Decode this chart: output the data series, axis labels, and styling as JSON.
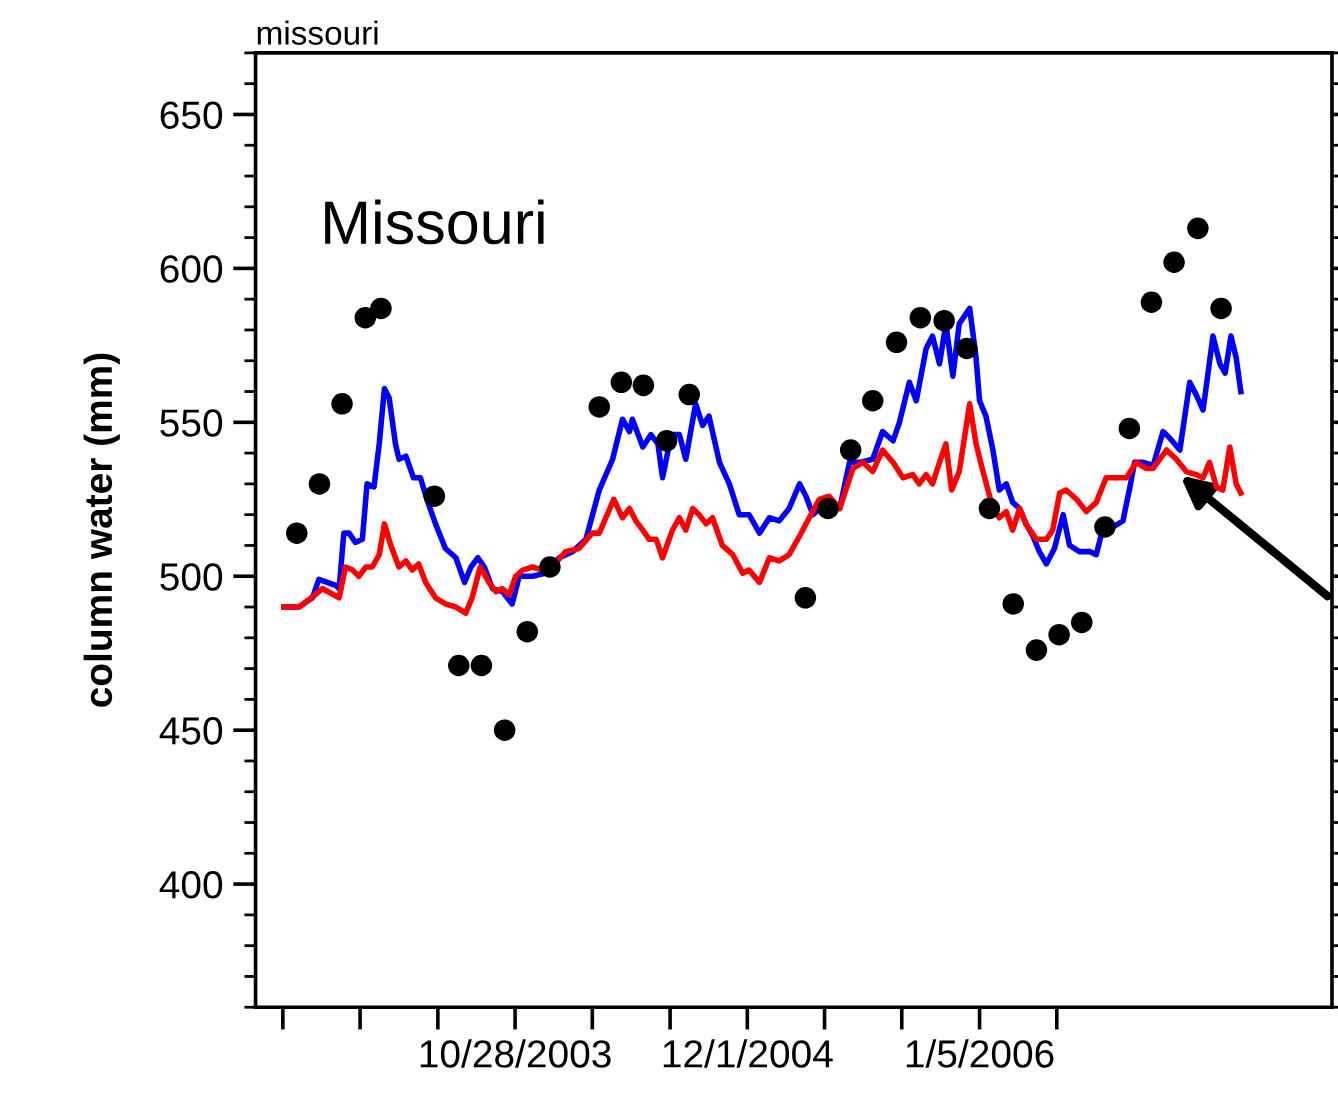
{
  "chart_data": {
    "type": "line",
    "title": "missouri",
    "ylabel": "column water (mm)",
    "annotations": [
      "Missouri"
    ],
    "xlim": [
      "2002-08-07",
      "2007-09-04"
    ],
    "xticks": [
      {
        "value": "2002-09-23",
        "label": null
      },
      {
        "value": "2003-02-03",
        "label": null
      },
      {
        "value": "2003-06-17",
        "label": null
      },
      {
        "value": "2003-10-28",
        "label": "10/28/2003"
      },
      {
        "value": "2004-03-09",
        "label": null
      },
      {
        "value": "2004-07-21",
        "label": null
      },
      {
        "value": "2004-12-01",
        "label": "12/1/2004"
      },
      {
        "value": "2005-04-13",
        "label": null
      },
      {
        "value": "2005-08-24",
        "label": null
      },
      {
        "value": "2006-01-05",
        "label": "1/5/2006"
      },
      {
        "value": "2006-05-18",
        "label": null
      }
    ],
    "ylim": [
      360,
      670
    ],
    "yticks": [
      {
        "value": 360,
        "label": null
      },
      {
        "value": 370,
        "label": null
      },
      {
        "value": 380,
        "label": null
      },
      {
        "value": 390,
        "label": null
      },
      400,
      {
        "value": 410,
        "label": null
      },
      {
        "value": 420,
        "label": null
      },
      {
        "value": 430,
        "label": null
      },
      {
        "value": 440,
        "label": null
      },
      450,
      {
        "value": 460,
        "label": null
      },
      {
        "value": 470,
        "label": null
      },
      {
        "value": 480,
        "label": null
      },
      {
        "value": 490,
        "label": null
      },
      500,
      {
        "value": 510,
        "label": null
      },
      {
        "value": 520,
        "label": null
      },
      {
        "value": 530,
        "label": null
      },
      {
        "value": 540,
        "label": null
      },
      550,
      {
        "value": 560,
        "label": null
      },
      {
        "value": 570,
        "label": null
      },
      {
        "value": 580,
        "label": null
      },
      {
        "value": 590,
        "label": null
      },
      600,
      {
        "value": 610,
        "label": null
      },
      {
        "value": 620,
        "label": null
      },
      {
        "value": 630,
        "label": null
      },
      {
        "value": 640,
        "label": null
      },
      650,
      {
        "value": 660,
        "label": null
      },
      {
        "value": 670,
        "label": null
      }
    ],
    "grid": false,
    "series": [
      {
        "color": "#0000ff",
        "x": [
          "2002-09-25",
          "2002-10-21",
          "2002-11-13",
          "2002-11-24",
          "2002-12-23",
          "2002-12-29",
          "2003-01-06",
          "2003-01-15",
          "2003-01-26",
          "2003-02-07",
          "2003-02-15",
          "2003-02-27",
          "2003-03-08",
          "2003-03-17",
          "2003-03-25",
          "2003-04-05",
          "2003-04-11",
          "2003-04-23",
          "2003-05-06",
          "2003-05-18",
          "2003-05-29",
          "2003-06-13",
          "2003-06-30",
          "2003-07-18",
          "2003-08-02",
          "2003-08-13",
          "2003-08-25",
          "2003-09-05",
          "2003-09-19",
          "2003-10-06",
          "2003-10-23",
          "2003-11-04",
          "2003-11-27",
          "2003-12-20",
          "2004-01-12",
          "2004-02-04",
          "2004-02-27",
          "2004-03-21",
          "2004-04-13",
          "2004-04-30",
          "2004-05-12",
          "2004-05-17",
          "2004-06-04",
          "2004-06-18",
          "2004-06-30",
          "2004-07-08",
          "2004-07-23",
          "2004-08-06",
          "2004-08-17",
          "2004-09-03",
          "2004-09-15",
          "2004-09-26",
          "2004-10-14",
          "2004-10-31",
          "2004-11-17",
          "2004-12-04",
          "2004-12-22",
          "2005-01-08",
          "2005-01-25",
          "2005-02-11",
          "2005-03-01",
          "2005-03-12",
          "2005-03-24",
          "2005-04-16",
          "2005-05-09",
          "2005-05-26",
          "2005-06-12",
          "2005-07-05",
          "2005-07-22",
          "2005-08-09",
          "2005-08-20",
          "2005-09-06",
          "2005-09-18",
          "2005-10-05",
          "2005-10-16",
          "2005-10-28",
          "2005-11-08",
          "2005-11-20",
          "2005-12-01",
          "2005-12-19",
          "2005-12-30",
          "2006-01-05",
          "2006-01-16",
          "2006-01-28",
          "2006-02-08",
          "2006-02-20",
          "2006-03-03",
          "2006-03-15",
          "2006-03-26",
          "2006-04-07",
          "2006-04-18",
          "2006-04-30",
          "2006-05-14",
          "2006-05-29",
          "2006-06-09",
          "2006-06-26",
          "2006-07-14",
          "2006-07-25",
          "2006-08-06",
          "2006-08-23",
          "2006-09-09",
          "2006-09-21",
          "2006-09-29",
          "2006-10-14",
          "2006-10-31",
          "2006-11-17",
          "2006-11-28",
          "2006-12-16",
          "2007-01-02",
          "2007-01-13",
          "2007-01-25",
          "2007-02-11",
          "2007-02-23",
          "2007-03-04",
          "2007-03-14",
          "2007-03-23",
          "2007-03-31"
        ],
        "values": [
          490,
          490,
          493,
          499,
          497,
          496,
          514,
          514,
          511,
          512,
          530,
          529,
          543,
          561,
          558,
          543,
          538,
          539,
          532,
          532,
          525,
          517,
          509,
          506,
          498,
          503,
          506,
          503,
          496,
          495,
          491,
          500,
          500,
          501,
          506,
          508,
          512,
          528,
          538,
          551,
          547,
          551,
          542,
          546,
          543,
          532,
          546,
          546,
          538,
          556,
          549,
          552,
          537,
          530,
          520,
          520,
          514,
          519,
          518,
          522,
          530,
          526,
          520,
          524,
          522,
          537,
          537,
          538,
          547,
          544,
          550,
          563,
          557,
          574,
          578,
          569,
          582,
          565,
          582,
          587,
          571,
          557,
          552,
          541,
          528,
          530,
          524,
          522,
          517,
          513,
          508,
          504,
          509,
          520,
          510,
          508,
          508,
          507,
          516,
          516,
          518,
          529,
          537,
          537,
          536,
          547,
          545,
          541,
          563,
          559,
          554,
          578,
          569,
          566,
          578,
          571,
          560
        ]
      },
      {
        "color": "#ff0000",
        "x": [
          "2002-09-25",
          "2002-10-21",
          "2002-11-18",
          "2002-11-30",
          "2002-12-29",
          "2003-01-09",
          "2003-01-21",
          "2003-02-01",
          "2003-02-13",
          "2003-02-24",
          "2003-03-08",
          "2003-03-17",
          "2003-03-28",
          "2003-04-11",
          "2003-04-23",
          "2003-05-04",
          "2003-05-15",
          "2003-05-27",
          "2003-06-13",
          "2003-06-30",
          "2003-07-18",
          "2003-08-04",
          "2003-08-15",
          "2003-08-29",
          "2003-09-13",
          "2003-09-25",
          "2003-10-06",
          "2003-10-18",
          "2003-10-29",
          "2003-11-10",
          "2003-11-27",
          "2003-12-14",
          "2003-12-31",
          "2004-01-23",
          "2004-02-15",
          "2004-03-09",
          "2004-03-21",
          "2004-04-15",
          "2004-04-30",
          "2004-05-12",
          "2004-05-23",
          "2004-06-04",
          "2004-06-15",
          "2004-06-27",
          "2004-07-08",
          "2004-07-25",
          "2004-08-06",
          "2004-08-17",
          "2004-08-29",
          "2004-09-09",
          "2004-09-21",
          "2004-10-02",
          "2004-10-19",
          "2004-11-06",
          "2004-11-23",
          "2004-12-04",
          "2004-12-22",
          "2005-01-08",
          "2005-01-25",
          "2005-02-11",
          "2005-03-01",
          "2005-03-12",
          "2005-04-04",
          "2005-04-21",
          "2005-05-09",
          "2005-06-01",
          "2005-06-18",
          "2005-07-05",
          "2005-07-22",
          "2005-08-09",
          "2005-08-26",
          "2005-09-12",
          "2005-09-23",
          "2005-10-05",
          "2005-10-16",
          "2005-10-28",
          "2005-11-08",
          "2005-11-18",
          "2005-12-01",
          "2005-12-19",
          "2005-12-30",
          "2006-01-11",
          "2006-01-28",
          "2006-02-08",
          "2006-02-20",
          "2006-03-03",
          "2006-03-15",
          "2006-03-26",
          "2006-04-13",
          "2006-04-30",
          "2006-05-11",
          "2006-05-23",
          "2006-06-03",
          "2006-06-21",
          "2006-07-08",
          "2006-07-25",
          "2006-08-11",
          "2006-08-29",
          "2006-09-15",
          "2006-10-02",
          "2006-10-19",
          "2006-10-31",
          "2006-11-23",
          "2006-12-10",
          "2006-12-27",
          "2007-01-13",
          "2007-01-25",
          "2007-02-05",
          "2007-02-17",
          "2007-02-28",
          "2007-03-12",
          "2007-03-23",
          "2007-03-31"
        ],
        "values": [
          490,
          490,
          494,
          496,
          493,
          503,
          502,
          500,
          503,
          503,
          507,
          517,
          510,
          503,
          505,
          502,
          504,
          498,
          493,
          491,
          490,
          488,
          493,
          503,
          498,
          495,
          496,
          494,
          500,
          502,
          503,
          502,
          503,
          508,
          509,
          514,
          514,
          525,
          519,
          522,
          518,
          515,
          512,
          512,
          506,
          515,
          519,
          515,
          522,
          520,
          517,
          519,
          510,
          507,
          501,
          502,
          498,
          506,
          505,
          507,
          513,
          517,
          525,
          526,
          522,
          535,
          537,
          534,
          541,
          537,
          532,
          533,
          530,
          533,
          530,
          537,
          543,
          528,
          534,
          556,
          543,
          534,
          522,
          519,
          521,
          515,
          522,
          517,
          512,
          512,
          515,
          527,
          528,
          525,
          521,
          524,
          532,
          532,
          532,
          537,
          535,
          535,
          541,
          538,
          534,
          533,
          532,
          537,
          529,
          528,
          542,
          530,
          527
        ]
      },
      {
        "type": "scatter",
        "color": "#000000",
        "marker": "circle",
        "x": [
          "2002-10-17",
          "2002-11-25",
          "2003-01-03",
          "2003-02-12",
          "2003-03-11",
          "2003-06-11",
          "2003-07-23",
          "2003-08-31",
          "2003-10-10",
          "2003-11-18",
          "2003-12-27",
          "2004-03-21",
          "2004-04-28",
          "2004-06-05",
          "2004-07-15",
          "2004-08-23",
          "2005-03-11",
          "2005-04-19",
          "2005-05-28",
          "2005-07-05",
          "2005-08-15",
          "2005-09-25",
          "2005-11-05",
          "2005-12-14",
          "2006-01-22",
          "2006-03-04",
          "2006-04-13",
          "2006-05-22",
          "2006-06-30",
          "2006-08-09",
          "2006-09-20",
          "2006-10-28",
          "2006-12-06",
          "2007-01-16",
          "2007-02-25"
        ],
        "values": [
          514,
          530,
          556,
          584,
          587,
          526,
          471,
          471,
          450,
          482,
          503,
          555,
          563,
          562,
          544,
          559,
          493,
          522,
          541,
          557,
          576,
          584,
          583,
          574,
          522,
          491,
          476,
          481,
          485,
          516,
          548,
          589,
          602,
          613,
          587
        ]
      }
    ]
  }
}
